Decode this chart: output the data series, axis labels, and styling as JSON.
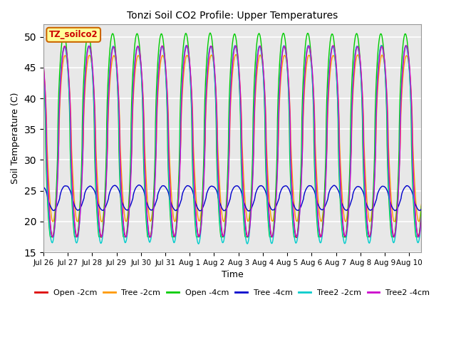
{
  "title": "Tonzi Soil CO2 Profile: Upper Temperatures",
  "xlabel": "Time",
  "ylabel": "Soil Temperature (C)",
  "ylim": [
    15,
    52
  ],
  "yticks": [
    15,
    20,
    25,
    30,
    35,
    40,
    45,
    50
  ],
  "annotation_text": "TZ_soilco2",
  "annotation_color": "#cc0000",
  "annotation_bg": "#ffff99",
  "annotation_border": "#cc6600",
  "series": [
    {
      "label": "Open -2cm",
      "color": "#dd0000",
      "lw": 1.0
    },
    {
      "label": "Tree -2cm",
      "color": "#ff9900",
      "lw": 1.0
    },
    {
      "label": "Open -4cm",
      "color": "#00cc00",
      "lw": 1.0
    },
    {
      "label": "Tree -4cm",
      "color": "#0000cc",
      "lw": 1.0
    },
    {
      "label": "Tree2 -2cm",
      "color": "#00cccc",
      "lw": 1.0
    },
    {
      "label": "Tree2 -4cm",
      "color": "#cc00cc",
      "lw": 1.0
    }
  ],
  "bg_color": "#ffffff",
  "plot_bg": "#e8e8e8",
  "grid_color": "#ffffff",
  "xtick_labels": [
    "Jul 26",
    "Jul 27",
    "Jul 28",
    "Jul 29",
    "Jul 30",
    "Jul 31",
    "Aug 1",
    "Aug 2",
    "Aug 3",
    "Aug 4",
    "Aug 5",
    "Aug 6",
    "Aug 7",
    "Aug 8",
    "Aug 9",
    "Aug 10"
  ],
  "xtick_positions": [
    0,
    1,
    2,
    3,
    4,
    5,
    6,
    7,
    8,
    9,
    10,
    11,
    12,
    13,
    14,
    15
  ]
}
